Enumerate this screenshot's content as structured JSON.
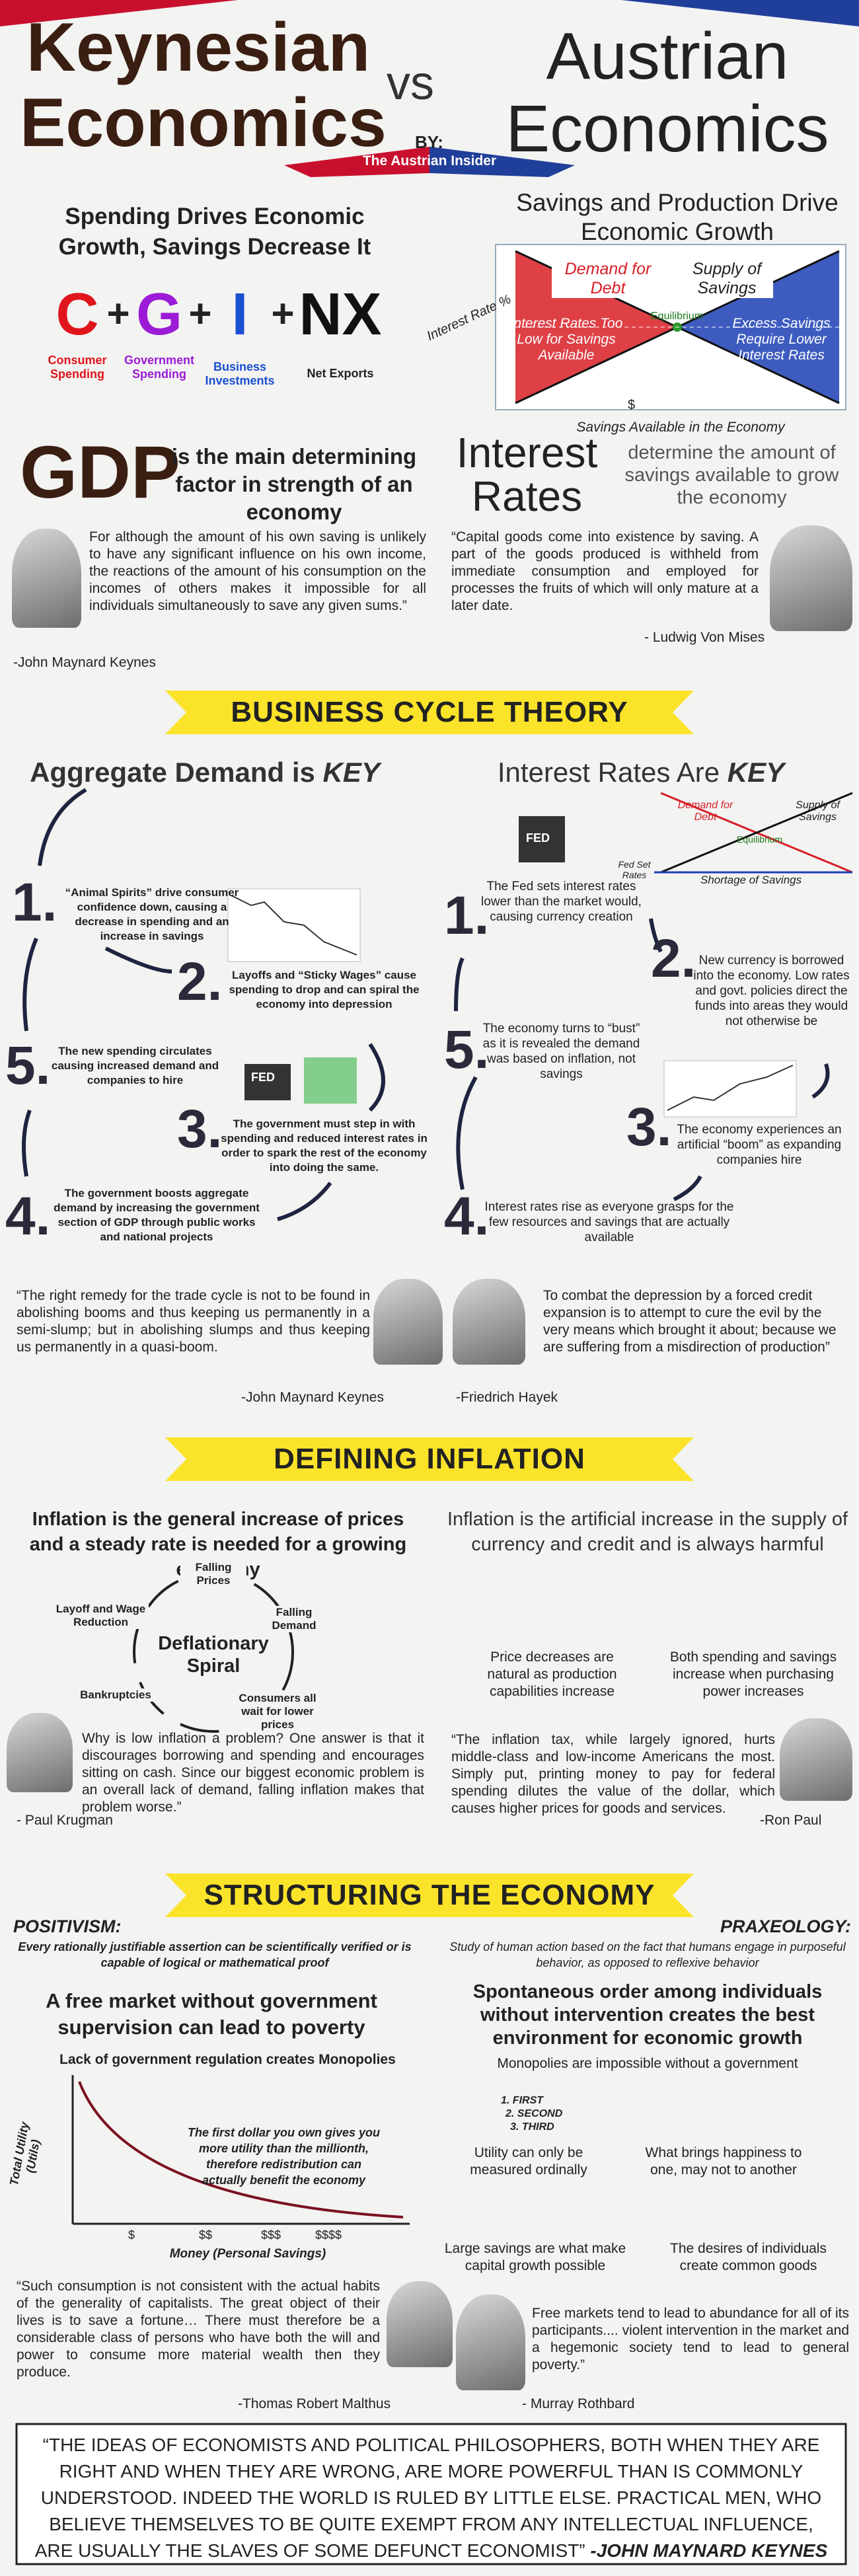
{
  "header": {
    "left_title": "Keynesian Economics",
    "vs": "vs",
    "right_title": "Austrian Economics",
    "by": "BY:",
    "author": "The Austrian Insider"
  },
  "spending": {
    "title": "Spending Drives Economic Growth, Savings Decrease It",
    "operators": [
      "+",
      "+",
      "+"
    ],
    "terms": [
      {
        "letter": "C",
        "label": "Consumer Spending"
      },
      {
        "letter": "G",
        "label": "Government Spending"
      },
      {
        "letter": "I",
        "label": "Business Investments"
      },
      {
        "letter": "NX",
        "label": "Net Exports"
      }
    ]
  },
  "savings_graph": {
    "title": "Savings and Production Drive Economic Growth",
    "y_label": "Interest Rate %",
    "demand": "Demand for Debt",
    "supply": "Supply of Savings",
    "equilibrium": "Equilibrium",
    "low": "Interest Rates Too Low for Savings Available",
    "excess": "Excess Savings Require Lower Interest Rates",
    "x_mark": "$",
    "x_label": "Savings Available in the Economy"
  },
  "gdp": {
    "word": "GDP",
    "text": "is the main determining factor in strength of an economy"
  },
  "rates": {
    "word": "Interest Rates",
    "text": "determine the amount of savings available to grow the economy"
  },
  "quotes_1": {
    "keynes": "For although the amount of his own saving is unlikely to have any significant influence on his own income, the reactions of the amount of his consumption on the incomes of others makes it impossible for all individuals simultaneously to save any given sums.”",
    "keynes_author": "-John Maynard Keynes",
    "mises": "“Capital goods come into existence by saving. A part of the goods produced is withheld from immediate consumption and employed for processes the fruits of which will only mature at a later date.",
    "mises_author": "- Ludwig Von Mises"
  },
  "banners": [
    "BUSINESS CYCLE THEORY",
    "DEFINING INFLATION",
    "STRUCTURING THE ECONOMY"
  ],
  "cycle_left": {
    "title": "Aggregate Demand is",
    "emphasis": "KEY",
    "fed": "FED",
    "steps": [
      {
        "number": "1.",
        "text": "“Animal Spirits” drive consumer confidence down, causing a decrease in spending and an increase in savings"
      },
      {
        "number": "2.",
        "text": "Layoffs and “Sticky Wages” cause spending to drop and can spiral the economy into depression"
      },
      {
        "number": "3.",
        "text": "The government must step in with spending and reduced interest rates in order to spark the rest of the economy into doing the same."
      },
      {
        "number": "4.",
        "text": "The government boosts aggregate demand by increasing the government section of GDP through public works and national projects"
      },
      {
        "number": "5.",
        "text": "The new spending circulates causing increased demand and companies to hire"
      }
    ]
  },
  "cycle_right": {
    "title": "Interest Rates Are",
    "emphasis": "KEY",
    "fed": "FED",
    "demand": "Demand for Debt",
    "supply": "Supply of Savings",
    "equilibrium": "Equilibrium",
    "fed_rates": "Fed Set Rates",
    "shortage": "Shortage of Savings",
    "steps": [
      {
        "number": "1.",
        "text": "The Fed sets interest rates lower than the market would, causing currency creation"
      },
      {
        "number": "2.",
        "text": "New currency is borrowed into the economy. Low rates and govt. policies direct the funds into areas they would not otherwise be"
      },
      {
        "number": "3.",
        "text": "The economy experiences an artificial “boom” as expanding companies hire"
      },
      {
        "number": "4.",
        "text": "Interest rates rise as everyone grasps for the few resources and savings that are actually available"
      },
      {
        "number": "5.",
        "text": "The economy turns to “bust” as it is revealed the demand was based on inflation, not savings"
      }
    ]
  },
  "quotes_2": {
    "keynes": "“The right remedy for the trade cycle is not to be found in abolishing booms and thus keeping us permanently in a semi-slump; but in abolishing slumps and thus keeping us permanently in a quasi-boom.",
    "keynes_author": "-John Maynard Keynes",
    "hayek": "To combat the depression by a forced credit expansion is to attempt to cure the evil by the very means which brought it about; because we are suffering from a misdirection of production”",
    "hayek_author": "-Friedrich Hayek"
  },
  "inflation_left": {
    "title": "Inflation is the general increase of prices and a steady rate is needed for a growing economy",
    "spiral": {
      "center": "Deflationary Spiral",
      "prices": "Falling Prices",
      "demand": "Falling Demand",
      "wait": "Consumers all wait for lower prices",
      "bankruptcies": "Bankruptcies",
      "layoff": "Layoff and Wage Reduction"
    },
    "quote": "Why is low inflation a problem? One answer is that it discourages borrowing and spending and encourages sitting on cash. Since our biggest economic problem is an overall lack of demand, falling inflation makes that problem worse.”",
    "author": "- Paul Krugman"
  },
  "inflation_right": {
    "title": "Inflation is the artificial increase in the supply of currency and credit and is always harmful",
    "price": "Price decreases are natural as production capabilities increase",
    "power": "Both spending and savings increase when purchasing power increases",
    "quote": "“The inflation tax, while largely ignored, hurts middle-class and low-income Americans the most. Simply put, printing money to pay for federal spending dilutes the value of the dollar, which causes higher prices for goods and services.",
    "author": "-Ron Paul"
  },
  "positivism": {
    "label": "POSITIVISM:",
    "definition": "Every rationally justifiable assertion can be scientifically verified or is capable of logical or mathematical proof",
    "claim": "A free market without government supervision can lead to poverty",
    "monopolies": "Lack of government regulation creates Monopolies",
    "y_label": "Total Utility (Utils)",
    "note": "The first dollar you own gives you more utility than the millionth, therefore redistribution can actually benefit the economy",
    "x_ticks": [
      "$",
      "$$",
      "$$$",
      "$$$$"
    ],
    "x_label": "Money (Personal Savings)",
    "quote": "“Such consumption is not consistent with the actual habits of the generality of capitalists. The great object of their lives is to save a fortune… There must therefore be a considerable class of persons who have both the will and power to consume more material wealth then they produce.",
    "author": "-Thomas Robert Malthus"
  },
  "praxeology": {
    "label": "PRAXEOLOGY:",
    "definition": "Study of human action based on the fact that humans engage in purposeful behavior, as opposed to reflexive behavior",
    "claim": "Spontaneous order among individuals without intervention creates the best environment for economic growth",
    "monopolies": "Monopolies are impossible without a government",
    "ranks": [
      "1. FIRST",
      "2. SECOND",
      "3. THIRD"
    ],
    "utility": "Utility can only be measured ordinally",
    "happiness": "What brings happiness to one, may not to another",
    "savings": "Large savings are what make capital growth possible",
    "desires": "The desires of individuals create common goods",
    "quote": "Free markets tend to lead to abundance for all of its participants.... violent intervention in the market and a hegemonic society tend to lead to general poverty.”",
    "author": "- Murray Rothbard"
  },
  "closing": {
    "quote": "“THE IDEAS OF ECONOMISTS AND POLITICAL PHILOSOPHERS, BOTH WHEN THEY ARE RIGHT AND WHEN THEY ARE WRONG, ARE MORE POWERFUL THAN IS COMMONLY UNDERSTOOD. INDEED THE WORLD IS RULED BY LITTLE ELSE. PRACTICAL MEN, WHO BELIEVE THEMSELVES TO BE QUITE EXEMPT FROM ANY INTELLECTUAL INFLUENCE, ARE USUALLY THE SLAVES OF SOME DEFUNCT ECONOMIST”",
    "author": "-JOHN MAYNARD KEYNES"
  }
}
